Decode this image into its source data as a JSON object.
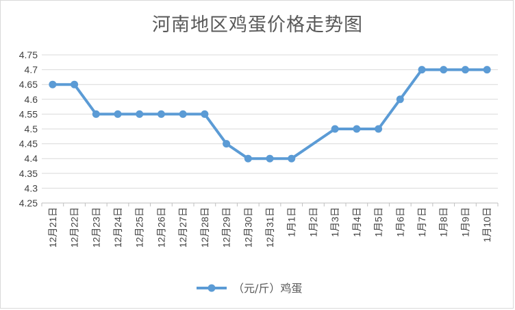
{
  "chart_data": {
    "type": "line",
    "title": "河南地区鸡蛋价格走势图",
    "xlabel": "",
    "ylabel": "",
    "categories": [
      "12月21日",
      "12月22日",
      "12月23日",
      "12月24日",
      "12月25日",
      "12月26日",
      "12月27日",
      "12月28日",
      "12月29日",
      "12月30日",
      "12月31日",
      "1月1日",
      "1月2日",
      "1月3日",
      "1月4日",
      "1月5日",
      "1月6日",
      "1月7日",
      "1月8日",
      "1月9日",
      "1月10日"
    ],
    "series": [
      {
        "name": "（元/斤）鸡蛋",
        "values": [
          4.65,
          4.65,
          4.55,
          4.55,
          4.55,
          4.55,
          4.55,
          4.55,
          4.45,
          4.4,
          4.4,
          4.4,
          null,
          4.5,
          4.5,
          4.5,
          4.6,
          4.7,
          4.7,
          4.7,
          4.7
        ],
        "color": "#5b9bd5"
      }
    ],
    "ylim": [
      4.25,
      4.75
    ],
    "yticks": [
      "4.25",
      "4.3",
      "4.35",
      "4.4",
      "4.45",
      "4.5",
      "4.55",
      "4.6",
      "4.65",
      "4.7",
      "4.75"
    ],
    "grid": true,
    "legend_position": "bottom",
    "line_connects_gaps": true
  }
}
